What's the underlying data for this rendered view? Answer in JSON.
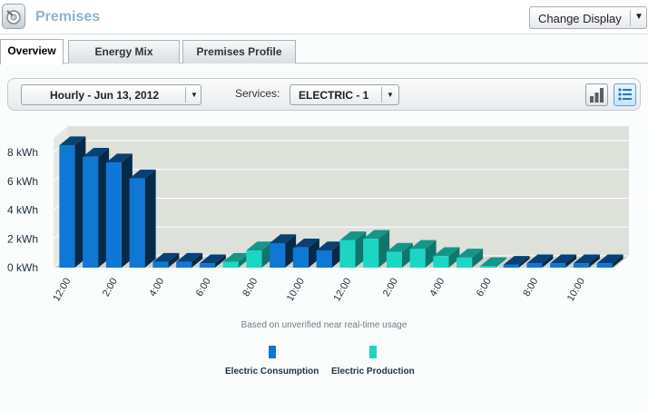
{
  "header": {
    "title": "Premises",
    "change_display_label": "Change Display",
    "change_display_arrow": "▼"
  },
  "tabs": [
    {
      "label": "Overview",
      "active": true
    },
    {
      "label": "Energy Mix",
      "active": false
    },
    {
      "label": "Premises Profile",
      "active": false
    }
  ],
  "toolbar": {
    "date_selector": "Hourly - Jun 13, 2012",
    "services_label": "Services:",
    "service_selector": "ELECTRIC - 1",
    "dropdown_arrow": "▼",
    "view_buttons": [
      {
        "icon": "bar-chart-icon",
        "active": false
      },
      {
        "icon": "list-view-icon",
        "active": true
      }
    ]
  },
  "chart_data": {
    "type": "bar",
    "unit": "kWh",
    "y_ticks": [
      "0 kWh",
      "2 kWh",
      "4 kWh",
      "6 kWh",
      "8 kWh"
    ],
    "ylim": [
      0,
      9
    ],
    "x_tick_labels": [
      "12:00",
      "2:00",
      "4:00",
      "6:00",
      "8:00",
      "10:00",
      "12:00",
      "2:00",
      "4:00",
      "6:00",
      "8:00",
      "10:00"
    ],
    "x_tick_every": 2,
    "categories_count": 24,
    "series": [
      {
        "name": "Electric Consumption",
        "color": "#0f77d4",
        "values": [
          8.5,
          7.7,
          7.3,
          6.2,
          0.4,
          0.4,
          0.3,
          0.0,
          0.0,
          1.7,
          1.4,
          1.2,
          0.0,
          0.0,
          0.0,
          0.0,
          0.0,
          0.0,
          0.0,
          0.2,
          0.3,
          0.3,
          0.3,
          0.3
        ]
      },
      {
        "name": "Electric Production",
        "color": "#1cd6c4",
        "values": [
          0,
          0,
          0,
          0,
          0,
          0,
          0,
          0.4,
          1.2,
          0,
          0,
          0,
          1.9,
          2.0,
          1.1,
          1.3,
          0.8,
          0.7,
          0.1,
          0,
          0,
          0,
          0,
          0
        ]
      }
    ],
    "legend": [
      "Electric Consumption",
      "Electric Production"
    ],
    "legend_position": "bottom",
    "note": "Based on unverified near real-time usage"
  },
  "colors": {
    "consumption": "#0f77d4",
    "production": "#1cd6c4",
    "title": "#8fb3cc",
    "plot_back": "#d6dbd4"
  }
}
